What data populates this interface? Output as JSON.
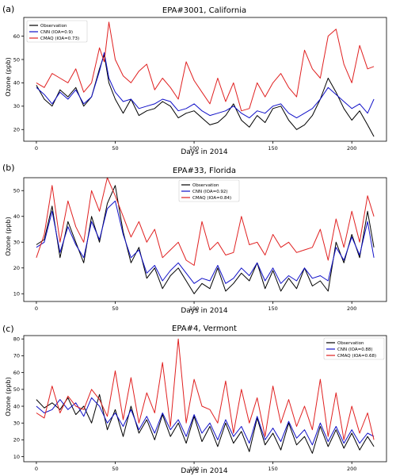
{
  "chart_data": [
    {
      "type": "line",
      "panel_label": "(a)",
      "title": "EPA#3001, California",
      "xlabel": "Days in 2014",
      "ylabel": "Ozone (ppb)",
      "xlim": [
        -8,
        222
      ],
      "ylim": [
        15,
        68
      ],
      "xticks": [
        0,
        50,
        100,
        150,
        200
      ],
      "yticks": [
        20,
        30,
        40,
        50,
        60
      ],
      "legend_position": "top-left",
      "x": [
        0,
        5,
        10,
        15,
        20,
        25,
        30,
        35,
        40,
        43,
        46,
        50,
        55,
        60,
        65,
        70,
        75,
        80,
        85,
        90,
        95,
        100,
        105,
        110,
        115,
        120,
        125,
        130,
        135,
        140,
        145,
        150,
        155,
        160,
        165,
        170,
        175,
        180,
        185,
        190,
        195,
        200,
        205,
        210,
        214
      ],
      "series": [
        {
          "name": "Observation",
          "color": "#000000",
          "values": [
            39,
            33,
            30,
            37,
            34,
            38,
            30,
            34,
            46,
            52,
            40,
            33,
            27,
            33,
            26,
            28,
            29,
            32,
            30,
            25,
            27,
            28,
            25,
            22,
            23,
            26,
            31,
            24,
            21,
            26,
            23,
            29,
            30,
            24,
            20,
            22,
            26,
            33,
            42,
            36,
            29,
            24,
            28,
            22,
            17
          ]
        },
        {
          "name": "CNN (IOA=0.9)",
          "color": "#1010c8",
          "values": [
            38,
            35,
            31,
            36,
            33,
            37,
            31,
            34,
            45,
            53,
            42,
            36,
            32,
            33,
            29,
            30,
            31,
            33,
            32,
            28,
            29,
            31,
            28,
            26,
            27,
            28,
            30,
            27,
            25,
            28,
            27,
            30,
            31,
            27,
            25,
            27,
            29,
            33,
            38,
            35,
            32,
            29,
            31,
            27,
            33
          ]
        },
        {
          "name": "CMAQ (IOA=0.73)",
          "color": "#e02020",
          "values": [
            40,
            38,
            44,
            42,
            40,
            46,
            36,
            40,
            55,
            49,
            66,
            50,
            43,
            40,
            45,
            48,
            37,
            42,
            38,
            33,
            49,
            41,
            36,
            31,
            42,
            32,
            40,
            28,
            29,
            40,
            34,
            40,
            44,
            38,
            34,
            54,
            46,
            42,
            60,
            63,
            48,
            40,
            56,
            46,
            47
          ]
        }
      ]
    },
    {
      "type": "line",
      "panel_label": "(b)",
      "title": "EPA#33, Florida",
      "xlabel": "Days in 2014",
      "ylabel": "Ozone (ppb)",
      "xlim": [
        -8,
        222
      ],
      "ylim": [
        7,
        55
      ],
      "xticks": [
        0,
        50,
        100,
        150,
        200
      ],
      "yticks": [
        10,
        20,
        30,
        40,
        50
      ],
      "legend_position": "top-center",
      "x": [
        0,
        5,
        10,
        15,
        20,
        25,
        30,
        35,
        40,
        45,
        50,
        55,
        60,
        65,
        70,
        75,
        80,
        85,
        90,
        95,
        100,
        105,
        110,
        115,
        120,
        125,
        130,
        135,
        140,
        145,
        150,
        155,
        160,
        165,
        170,
        175,
        180,
        185,
        190,
        195,
        200,
        205,
        210,
        214
      ],
      "series": [
        {
          "name": "Observation",
          "color": "#000000",
          "values": [
            29,
            31,
            44,
            24,
            38,
            30,
            22,
            40,
            30,
            45,
            52,
            34,
            22,
            28,
            16,
            20,
            12,
            17,
            20,
            15,
            10,
            14,
            12,
            20,
            11,
            14,
            18,
            15,
            22,
            12,
            19,
            11,
            16,
            12,
            20,
            13,
            15,
            11,
            30,
            22,
            33,
            24,
            42,
            28
          ]
        },
        {
          "name": "CNN (IOA=0.92)",
          "color": "#1010c8",
          "values": [
            28,
            30,
            42,
            26,
            36,
            29,
            24,
            38,
            31,
            43,
            46,
            33,
            24,
            27,
            18,
            21,
            15,
            19,
            22,
            18,
            14,
            16,
            15,
            21,
            14,
            16,
            20,
            17,
            22,
            15,
            20,
            14,
            17,
            15,
            20,
            16,
            17,
            15,
            28,
            23,
            32,
            25,
            38,
            24
          ]
        },
        {
          "name": "CMAQ (IOA=0.84)",
          "color": "#e02020",
          "values": [
            24,
            33,
            52,
            30,
            46,
            36,
            30,
            50,
            42,
            55,
            48,
            40,
            32,
            38,
            30,
            35,
            24,
            27,
            30,
            23,
            21,
            38,
            27,
            30,
            25,
            26,
            40,
            29,
            30,
            25,
            33,
            28,
            30,
            26,
            27,
            28,
            35,
            23,
            39,
            28,
            42,
            30,
            48,
            40
          ]
        }
      ]
    },
    {
      "type": "line",
      "panel_label": "(c)",
      "title": "EPA#4, Vermont",
      "xlabel": "Days in 2014",
      "ylabel": "Ozone (ppb)",
      "xlim": [
        -8,
        222
      ],
      "ylim": [
        7,
        82
      ],
      "xticks": [
        0,
        50,
        100,
        150,
        200
      ],
      "yticks": [
        10,
        20,
        30,
        40,
        50,
        60,
        70,
        80
      ],
      "legend_position": "top-right",
      "x": [
        0,
        5,
        10,
        15,
        20,
        25,
        30,
        35,
        40,
        45,
        50,
        55,
        60,
        65,
        70,
        75,
        80,
        85,
        90,
        95,
        100,
        105,
        110,
        115,
        120,
        125,
        130,
        135,
        140,
        145,
        150,
        155,
        160,
        165,
        170,
        175,
        180,
        185,
        190,
        195,
        200,
        205,
        210,
        214
      ],
      "series": [
        {
          "name": "Observation",
          "color": "#000000",
          "values": [
            44,
            39,
            42,
            38,
            45,
            35,
            40,
            30,
            47,
            26,
            38,
            22,
            40,
            24,
            32,
            20,
            35,
            22,
            30,
            18,
            34,
            19,
            28,
            16,
            30,
            18,
            25,
            13,
            33,
            17,
            24,
            14,
            30,
            17,
            22,
            12,
            28,
            16,
            26,
            15,
            24,
            14,
            22,
            16
          ]
        },
        {
          "name": "CNN (IOA=0.88)",
          "color": "#1010c8",
          "values": [
            40,
            36,
            38,
            44,
            38,
            42,
            34,
            45,
            40,
            30,
            36,
            28,
            38,
            26,
            34,
            24,
            36,
            26,
            32,
            22,
            35,
            24,
            30,
            20,
            32,
            22,
            28,
            18,
            34,
            20,
            27,
            19,
            31,
            21,
            26,
            17,
            30,
            19,
            28,
            18,
            26,
            18,
            24,
            22
          ]
        },
        {
          "name": "CMAQ (IOA=0.68)",
          "color": "#e02020",
          "values": [
            36,
            33,
            52,
            36,
            46,
            40,
            38,
            50,
            44,
            34,
            61,
            32,
            57,
            30,
            48,
            36,
            66,
            28,
            80,
            30,
            56,
            40,
            38,
            30,
            55,
            24,
            50,
            30,
            45,
            22,
            52,
            30,
            44,
            28,
            40,
            26,
            56,
            22,
            48,
            20,
            40,
            24,
            36,
            20
          ]
        }
      ]
    }
  ]
}
